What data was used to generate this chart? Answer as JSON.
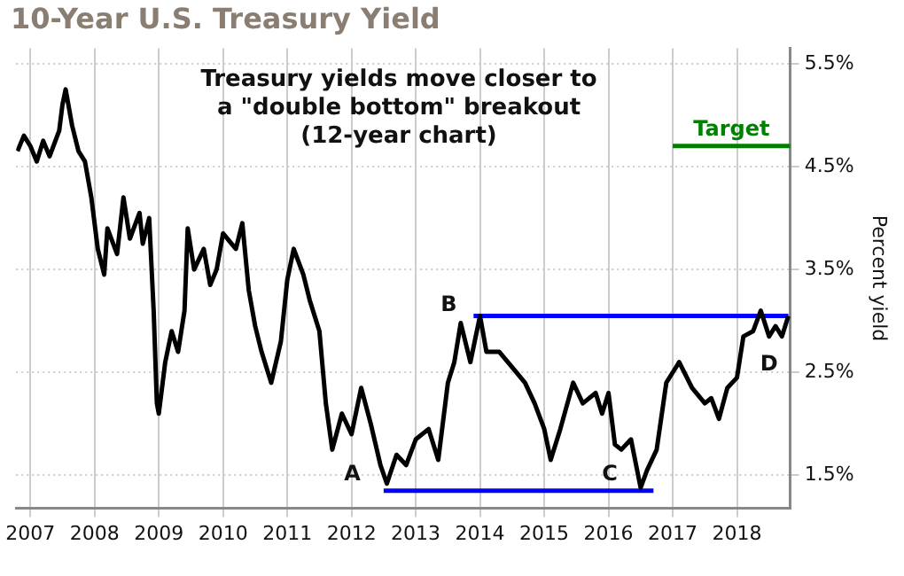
{
  "chart_data": {
    "type": "line",
    "title": "10-Year U.S. Treasury Yield",
    "ylabel": "Percent yield",
    "annotations": [
      "Treasury yields move closer to\na \"double bottom\" breakout\n(12-year chart)",
      {
        "text": "A",
        "x": 2012.5,
        "y": 1.4
      },
      {
        "text": "B",
        "x": 2014.0,
        "y": 3.05
      },
      {
        "text": "C",
        "x": 2016.5,
        "y": 1.4
      },
      {
        "text": "D",
        "x": 2018.5,
        "y": 2.85
      }
    ],
    "xlim": [
      2006.78,
      2018.83
    ],
    "xticks": [
      2007,
      2008,
      2009,
      2010,
      2011,
      2012,
      2013,
      2014,
      2015,
      2016,
      2017,
      2018
    ],
    "ylim": [
      1.18,
      5.65
    ],
    "yticks": [
      {
        "value": 1.5,
        "label": "1.5%"
      },
      {
        "value": 2.5,
        "label": "2.5%"
      },
      {
        "value": 3.5,
        "label": "3.5%"
      },
      {
        "value": 4.5,
        "label": "4.5%"
      },
      {
        "value": 5.5,
        "label": "5.5%"
      }
    ],
    "grid": true,
    "legend": false,
    "marker": "none",
    "line_style": "solid",
    "series": [
      {
        "color": "#000000",
        "x": [
          2006.8,
          2006.9,
          2007.0,
          2007.1,
          2007.2,
          2007.3,
          2007.45,
          2007.5,
          2007.55,
          2007.65,
          2007.75,
          2007.85,
          2007.95,
          2008.05,
          2008.15,
          2008.2,
          2008.35,
          2008.45,
          2008.55,
          2008.7,
          2008.75,
          2008.85,
          2008.92,
          2008.97,
          2009.0,
          2009.1,
          2009.2,
          2009.3,
          2009.4,
          2009.45,
          2009.55,
          2009.7,
          2009.8,
          2009.9,
          2010.0,
          2010.2,
          2010.3,
          2010.4,
          2010.5,
          2010.6,
          2010.75,
          2010.9,
          2011.0,
          2011.1,
          2011.25,
          2011.35,
          2011.5,
          2011.6,
          2011.7,
          2011.85,
          2012.0,
          2012.15,
          2012.3,
          2012.45,
          2012.55,
          2012.7,
          2012.85,
          2013.0,
          2013.2,
          2013.35,
          2013.5,
          2013.6,
          2013.7,
          2013.85,
          2014.0,
          2014.1,
          2014.3,
          2014.5,
          2014.7,
          2014.85,
          2015.0,
          2015.1,
          2015.25,
          2015.45,
          2015.6,
          2015.8,
          2015.9,
          2016.0,
          2016.1,
          2016.2,
          2016.35,
          2016.5,
          2016.6,
          2016.75,
          2016.9,
          2017.0,
          2017.1,
          2017.3,
          2017.5,
          2017.6,
          2017.72,
          2017.85,
          2018.0,
          2018.1,
          2018.25,
          2018.37,
          2018.5,
          2018.6,
          2018.7,
          2018.8
        ],
        "values": [
          4.65,
          4.8,
          4.7,
          4.55,
          4.75,
          4.6,
          4.85,
          5.1,
          5.25,
          4.9,
          4.65,
          4.55,
          4.2,
          3.7,
          3.45,
          3.9,
          3.65,
          4.2,
          3.8,
          4.05,
          3.75,
          4.0,
          3.1,
          2.2,
          2.1,
          2.6,
          2.9,
          2.7,
          3.1,
          3.9,
          3.5,
          3.7,
          3.35,
          3.5,
          3.85,
          3.7,
          3.95,
          3.3,
          2.95,
          2.7,
          2.4,
          2.8,
          3.4,
          3.7,
          3.45,
          3.2,
          2.9,
          2.2,
          1.75,
          2.1,
          1.9,
          2.35,
          2.0,
          1.6,
          1.42,
          1.7,
          1.6,
          1.85,
          1.95,
          1.65,
          2.4,
          2.6,
          2.98,
          2.6,
          3.05,
          2.7,
          2.7,
          2.55,
          2.4,
          2.2,
          1.95,
          1.65,
          1.95,
          2.4,
          2.2,
          2.3,
          2.1,
          2.3,
          1.8,
          1.75,
          1.85,
          1.38,
          1.55,
          1.75,
          2.4,
          2.5,
          2.6,
          2.35,
          2.2,
          2.25,
          2.05,
          2.35,
          2.45,
          2.85,
          2.9,
          3.1,
          2.85,
          2.95,
          2.85,
          3.05
        ]
      },
      {
        "color": "#0000ff",
        "x": [
          2013.9,
          2018.8
        ],
        "values": [
          3.05,
          3.05
        ]
      },
      {
        "color": "#0000ff",
        "x": [
          2012.5,
          2016.7
        ],
        "values": [
          1.35,
          1.35
        ]
      },
      {
        "name": "Target",
        "color": "#008000",
        "x": [
          2017.0,
          2018.83
        ],
        "values": [
          4.7,
          4.7
        ]
      }
    ]
  }
}
